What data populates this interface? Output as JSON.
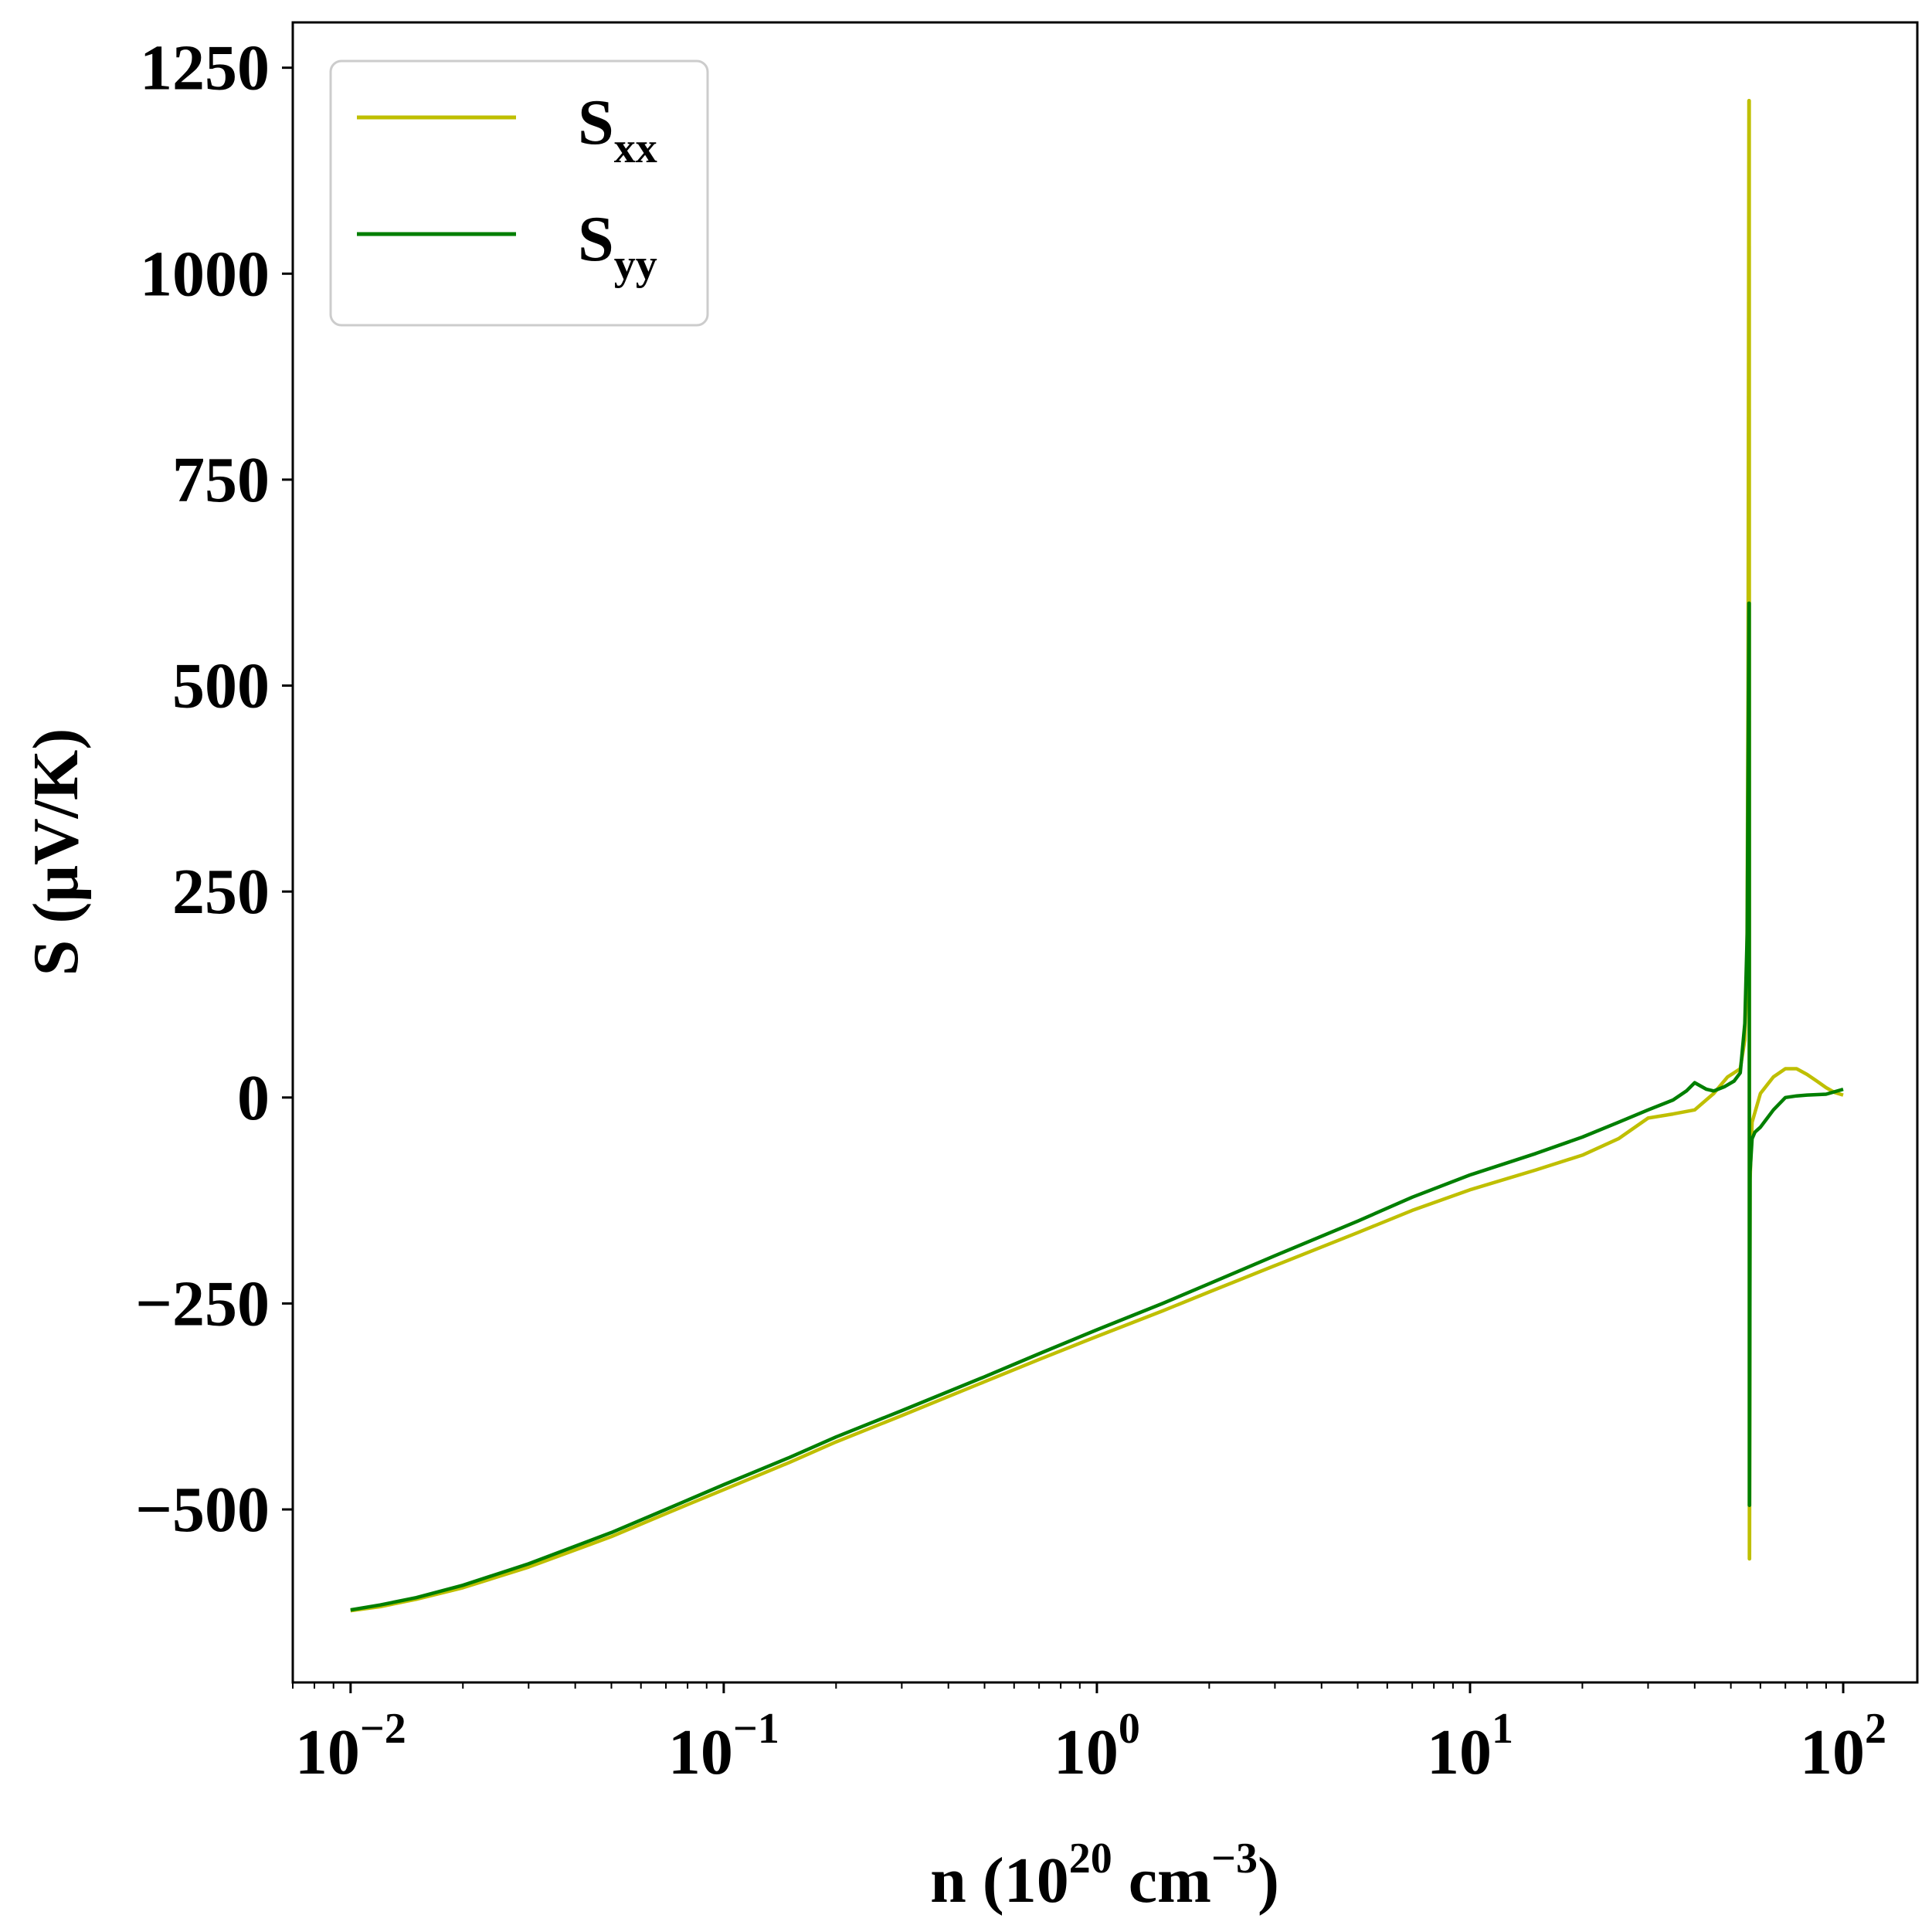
{
  "chart_data": {
    "type": "line",
    "xscale": "log",
    "xlim": [
      0.007,
      158
    ],
    "ylim": [
      -710,
      1305
    ],
    "xlabel": {
      "base": "n (10",
      "exp1": "20",
      "mid": " cm",
      "exp2": "−3",
      "close": ")"
    },
    "ylabel": "S (μV/K)",
    "xticks": [
      {
        "value": 0.01,
        "base": "10",
        "exp": "−2"
      },
      {
        "value": 0.1,
        "base": "10",
        "exp": "−1"
      },
      {
        "value": 1,
        "base": "10",
        "exp": "0"
      },
      {
        "value": 10,
        "base": "10",
        "exp": "1"
      },
      {
        "value": 100,
        "base": "10",
        "exp": "2"
      }
    ],
    "yticks": [
      {
        "value": 1250,
        "label": "1250"
      },
      {
        "value": 1000,
        "label": "1000"
      },
      {
        "value": 750,
        "label": "750"
      },
      {
        "value": 500,
        "label": "500"
      },
      {
        "value": 250,
        "label": "250"
      },
      {
        "value": 0,
        "label": "0"
      },
      {
        "value": -250,
        "label": "−250"
      },
      {
        "value": -500,
        "label": "−500"
      }
    ],
    "grid": false,
    "legend": {
      "position": "top-left"
    },
    "series": [
      {
        "name": "S",
        "name_sub": "xx",
        "color": "#bfbf00",
        "points": [
          [
            0.01,
            -623
          ],
          [
            0.012,
            -618
          ],
          [
            0.015,
            -609
          ],
          [
            0.02,
            -595
          ],
          [
            0.03,
            -570
          ],
          [
            0.05,
            -533
          ],
          [
            0.07,
            -505
          ],
          [
            0.1,
            -476
          ],
          [
            0.15,
            -443
          ],
          [
            0.2,
            -418
          ],
          [
            0.3,
            -386
          ],
          [
            0.5,
            -345
          ],
          [
            0.7,
            -318
          ],
          [
            1,
            -290
          ],
          [
            1.5,
            -259
          ],
          [
            2,
            -236
          ],
          [
            3,
            -204
          ],
          [
            5,
            -164
          ],
          [
            7,
            -137
          ],
          [
            10,
            -112
          ],
          [
            15,
            -88
          ],
          [
            20,
            -70
          ],
          [
            25,
            -50
          ],
          [
            30,
            -25
          ],
          [
            35,
            -20
          ],
          [
            40,
            -15
          ],
          [
            45,
            5
          ],
          [
            49,
            25
          ],
          [
            51,
            30
          ],
          [
            53,
            35
          ],
          [
            54.5,
            70
          ],
          [
            55.2,
            150
          ],
          [
            55.6,
            500
          ],
          [
            55.9,
            1210
          ],
          [
            56.0,
            1210
          ],
          [
            56.02,
            700
          ],
          [
            56.05,
            -560
          ],
          [
            56.1,
            -560
          ],
          [
            56.3,
            -100
          ],
          [
            57,
            -30
          ],
          [
            60,
            5
          ],
          [
            65,
            25
          ],
          [
            70,
            35
          ],
          [
            75,
            35
          ],
          [
            80,
            28
          ],
          [
            85,
            20
          ],
          [
            90,
            12
          ],
          [
            95,
            6
          ],
          [
            100,
            3
          ]
        ]
      },
      {
        "name": "S",
        "name_sub": "yy",
        "color": "#007f00",
        "points": [
          [
            0.01,
            -622
          ],
          [
            0.012,
            -616
          ],
          [
            0.015,
            -607
          ],
          [
            0.02,
            -592
          ],
          [
            0.03,
            -566
          ],
          [
            0.05,
            -528
          ],
          [
            0.07,
            -500
          ],
          [
            0.1,
            -470
          ],
          [
            0.15,
            -437
          ],
          [
            0.2,
            -412
          ],
          [
            0.3,
            -380
          ],
          [
            0.5,
            -339
          ],
          [
            0.7,
            -311
          ],
          [
            1,
            -282
          ],
          [
            1.5,
            -250
          ],
          [
            2,
            -226
          ],
          [
            3,
            -192
          ],
          [
            5,
            -150
          ],
          [
            7,
            -121
          ],
          [
            10,
            -94
          ],
          [
            15,
            -68
          ],
          [
            20,
            -48
          ],
          [
            25,
            -30
          ],
          [
            30,
            -15
          ],
          [
            35,
            -3
          ],
          [
            38,
            8
          ],
          [
            40,
            18
          ],
          [
            43,
            10
          ],
          [
            45,
            8
          ],
          [
            48,
            13
          ],
          [
            51,
            20
          ],
          [
            53,
            30
          ],
          [
            54.5,
            90
          ],
          [
            55.3,
            200
          ],
          [
            55.9,
            600
          ],
          [
            56.0,
            600
          ],
          [
            56.02,
            300
          ],
          [
            56.05,
            -495
          ],
          [
            56.1,
            -495
          ],
          [
            56.3,
            -90
          ],
          [
            57,
            -50
          ],
          [
            58,
            -42
          ],
          [
            60,
            -36
          ],
          [
            65,
            -15
          ],
          [
            70,
            0
          ],
          [
            75,
            2
          ],
          [
            80,
            3
          ],
          [
            90,
            4
          ],
          [
            100,
            10
          ]
        ]
      }
    ]
  }
}
